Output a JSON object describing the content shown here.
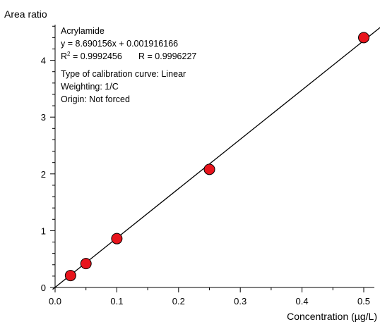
{
  "chart_data": {
    "type": "scatter",
    "ylabel": "Area ratio",
    "xlabel": "Concentration (µg/L)",
    "xlim": [
      0,
      0.525
    ],
    "ylim": [
      0,
      4.6
    ],
    "x_ticks": [
      0.0,
      0.1,
      0.2,
      0.3,
      0.4,
      0.5
    ],
    "x_tick_labels": [
      "0.0",
      "0.1",
      "0.2",
      "0.3",
      "0.4",
      "0.5"
    ],
    "y_ticks": [
      0,
      1,
      2,
      3,
      4
    ],
    "y_tick_labels": [
      "0",
      "1",
      "2",
      "3",
      "4"
    ],
    "y_minor_step": 0.2,
    "grid": false,
    "point_color": "#e8141c",
    "fit": {
      "type": "linear",
      "slope": 8.690156,
      "intercept": 0.001916166
    },
    "series": [
      {
        "x": [
          0.025,
          0.05,
          0.1,
          0.25,
          0.5
        ],
        "y": [
          0.21,
          0.42,
          0.86,
          2.08,
          4.4
        ]
      }
    ],
    "annotation": {
      "compound": "Acrylamide",
      "equation": "y = 8.690156x + 0.001916166",
      "r2_label": "R",
      "r2_sup": "2",
      "r2_value": " = 0.9992456",
      "r_text": "R = 0.9996227",
      "curve_type": "Type of calibration curve: Linear",
      "weighting": "Weighting: 1/C",
      "origin": "Origin: Not forced"
    }
  }
}
